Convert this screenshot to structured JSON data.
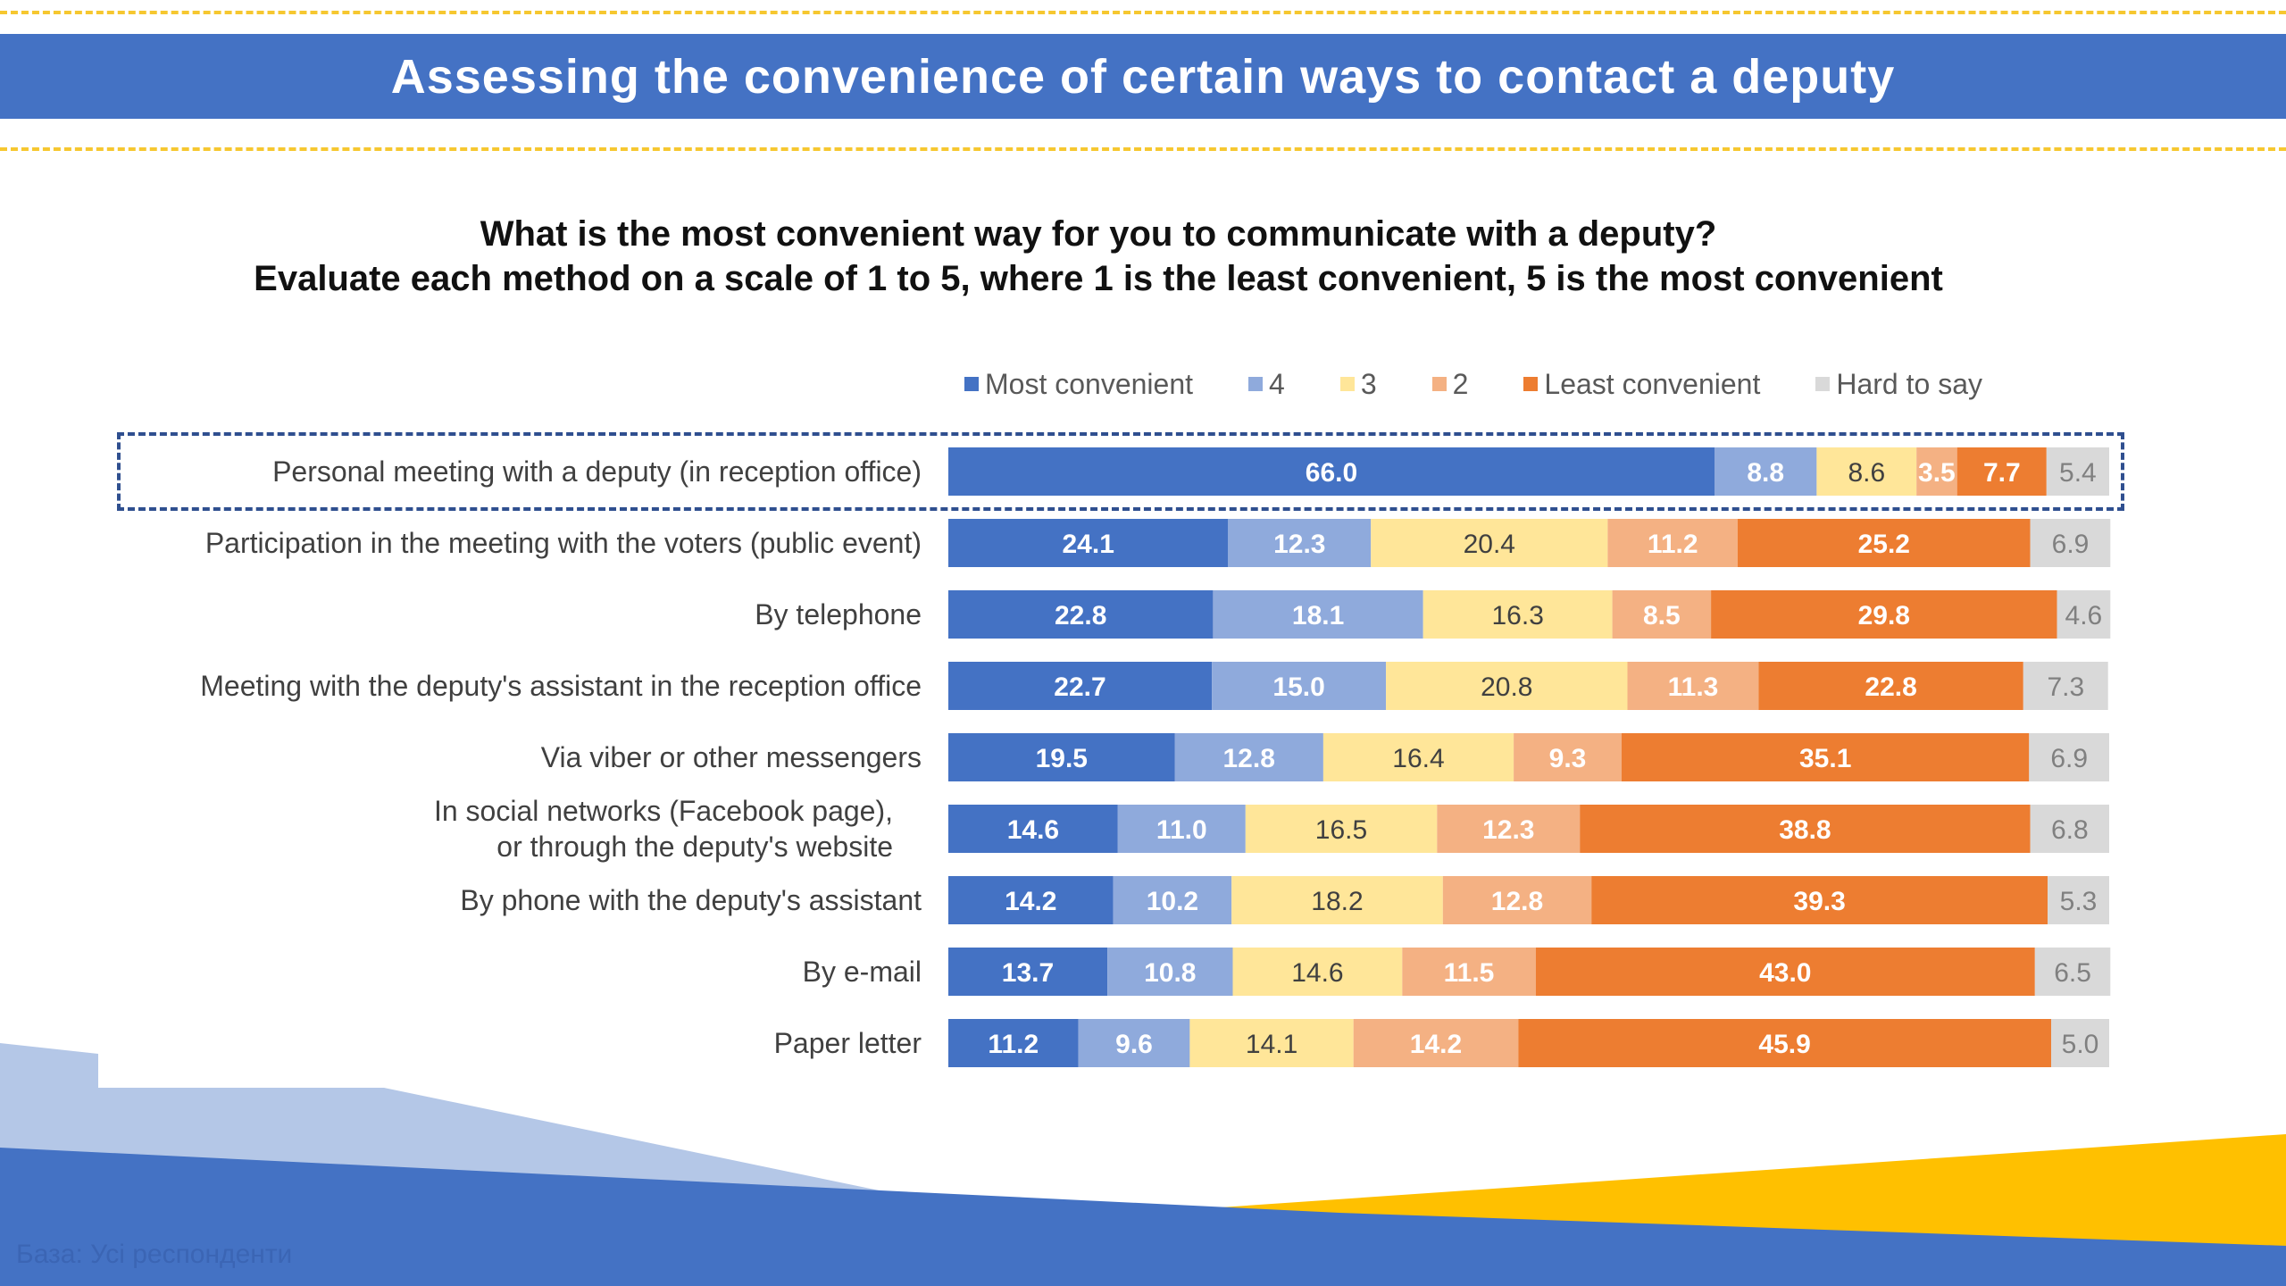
{
  "header": {
    "title": "Assessing the convenience of certain ways to contact a deputy"
  },
  "question": {
    "line1": "What is the most convenient way for you to communicate with a deputy?",
    "line2": "Evaluate each method on a scale of 1 to 5, where 1 is the least convenient, 5 is the most convenient"
  },
  "footer": {
    "source_note": "База: Усі респонденти"
  },
  "colors": {
    "banner": "#4472c4",
    "dashed_accent": "#f6c730",
    "highlight_border": "#2f4f8f",
    "decor_dark_blue": "#4472c4",
    "decor_light_blue": "#b4c7e7",
    "decor_yellow": "#ffc000"
  },
  "chart_data": {
    "type": "bar",
    "orientation": "horizontal",
    "stacked": true,
    "title": "",
    "xlabel": "",
    "ylabel": "",
    "xlim": [
      0,
      100
    ],
    "grid": false,
    "legend_position": "top",
    "highlighted_category": "Personal meeting with a deputy (in reception office)",
    "categories": [
      "Personal meeting with a deputy (in reception office)",
      "Participation in the meeting with the voters (public event)",
      "By telephone",
      "Meeting with the deputy's assistant in the reception office",
      "Via viber or other messengers",
      "In social networks (Facebook page),\nor through the deputy's website",
      "By phone with the deputy's assistant",
      "By e-mail",
      "Paper letter"
    ],
    "series": [
      {
        "name": "Most convenient",
        "color": "#4472c4",
        "label_color": "#ffffff",
        "label_bold": true,
        "values": [
          66.0,
          24.1,
          22.8,
          22.7,
          19.5,
          14.6,
          14.2,
          13.7,
          11.2
        ]
      },
      {
        "name": "4",
        "color": "#8faadc",
        "label_color": "#ffffff",
        "label_bold": true,
        "values": [
          8.8,
          12.3,
          18.1,
          15.0,
          12.8,
          11.0,
          10.2,
          10.8,
          9.6
        ]
      },
      {
        "name": "3",
        "color": "#ffe699",
        "label_color": "#404040",
        "label_bold": false,
        "values": [
          8.6,
          20.4,
          16.3,
          20.8,
          16.4,
          16.5,
          18.2,
          14.6,
          14.1
        ]
      },
      {
        "name": "2",
        "color": "#f4b183",
        "label_color": "#ffffff",
        "label_bold": true,
        "values": [
          3.5,
          11.2,
          8.5,
          11.3,
          9.3,
          12.3,
          12.8,
          11.5,
          14.2
        ]
      },
      {
        "name": "Least convenient",
        "color": "#ed7d31",
        "label_color": "#ffffff",
        "label_bold": true,
        "values": [
          7.7,
          25.2,
          29.8,
          22.8,
          35.1,
          38.8,
          39.3,
          43.0,
          45.9
        ]
      },
      {
        "name": "Hard to say",
        "color": "#d9d9d9",
        "label_color": "#808080",
        "label_bold": false,
        "values": [
          5.4,
          6.9,
          4.6,
          7.3,
          6.9,
          6.8,
          5.3,
          6.5,
          5.0
        ]
      }
    ]
  }
}
